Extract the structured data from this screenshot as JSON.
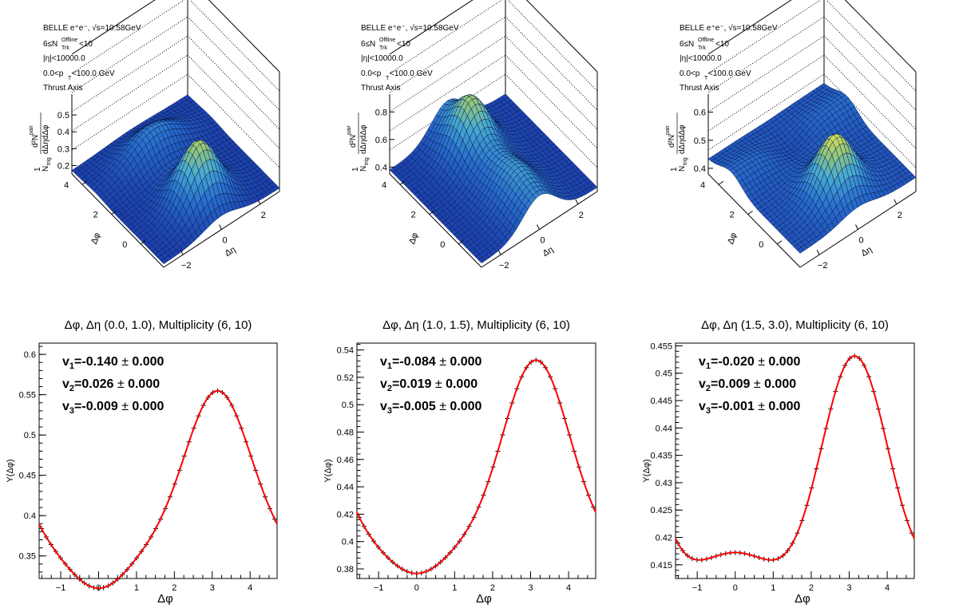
{
  "surface_panels": [
    {
      "info": [
        "BELLE e⁺e⁻, √s=10.58GeV",
        "6≤N",
        "|η|<10000.0",
        "0.0<p",
        "Thrust Axis"
      ],
      "nsub": "Trk",
      "nsup": "Offline",
      "nrest": "<10",
      "psub": "T",
      "prest": "<100.0 GeV",
      "zlabel_num": "d²N",
      "zlabel_num_sup": "pair",
      "zlabel_den": "dΔηdΔφ",
      "zlabel_pre": "1",
      "zlabel_pre_den": "N",
      "zlabel_pre_sub": "trig",
      "zticks": [
        "0.5",
        "0.4",
        "0.3",
        "0.2"
      ],
      "dphi_label": "Δφ",
      "deta_label": "Δη",
      "dphi_ticks": [
        "4",
        "2",
        "0"
      ],
      "deta_ticks": [
        "−2",
        "0",
        "2"
      ]
    },
    {
      "info": [
        "BELLE e⁺e⁻, √s=10.58GeV",
        "6≤N",
        "|η|<10000.0",
        "0.0<p",
        "Thrust Axis"
      ],
      "nsub": "Trk",
      "nsup": "Offline",
      "nrest": "<10",
      "psub": "T",
      "prest": "<100.0 GeV",
      "zlabel_num": "d²N",
      "zlabel_num_sup": "pair",
      "zlabel_den": "dΔηdΔφ",
      "zlabel_pre": "1",
      "zlabel_pre_den": "N",
      "zlabel_pre_sub": "trig",
      "zticks": [
        "0.8",
        "0.6",
        "0.4"
      ],
      "dphi_label": "Δφ",
      "deta_label": "Δη",
      "dphi_ticks": [
        "4",
        "2",
        "0"
      ],
      "deta_ticks": [
        "−2",
        "0",
        "2"
      ]
    },
    {
      "info": [
        "BELLE e⁺e⁻, √s=10.58GeV",
        "6≤N",
        "|η|<10000.0",
        "0.0<p",
        "Thrust Axis"
      ],
      "nsub": "Trk",
      "nsup": "Offline",
      "nrest": "<10",
      "psub": "T",
      "prest": "<100.0 GeV",
      "zlabel_num": "d²N",
      "zlabel_num_sup": "pair",
      "zlabel_den": "dΔηdΔφ",
      "zlabel_pre": "1",
      "zlabel_pre_den": "N",
      "zlabel_pre_sub": "trig",
      "zticks": [
        "0.6",
        "0.5",
        "0.4"
      ],
      "dphi_label": "Δφ",
      "deta_label": "Δη",
      "dphi_ticks": [
        "4",
        "2",
        "0"
      ],
      "deta_ticks": [
        "−2",
        "0",
        "2"
      ]
    }
  ],
  "colors": {
    "line": "#ff0000",
    "surface_low": "#1a4fb5",
    "surface_mid": "#4aa3d8",
    "surface_high": "#f4e84a"
  },
  "chart_data": [
    {
      "type": "line",
      "title": "Δφ, Δη (0.0, 1.0), Multiplicity (6, 10)",
      "xlabel": "Δφ",
      "ylabel": "Y(Δφ)",
      "xlim": [
        -1.5708,
        4.7124
      ],
      "ylim": [
        0.322,
        0.614
      ],
      "xticks": [
        "-1",
        "0",
        "1",
        "2",
        "3",
        "4"
      ],
      "yticks": [
        "0.35",
        "0.4",
        "0.45",
        "0.5",
        "0.55",
        "0.6"
      ],
      "a0": 0.411,
      "v1": -0.14,
      "v2": 0.026,
      "v3": -0.009,
      "annotations": [
        {
          "sub": "1",
          "val": "=-0.140",
          "err": "± 0.000"
        },
        {
          "sub": "2",
          "val": "=0.026",
          "err": "± 0.000"
        },
        {
          "sub": "3",
          "val": "=-0.009",
          "err": "± 0.000"
        }
      ],
      "grid": false
    },
    {
      "type": "line",
      "title": "Δφ, Δη (1.0, 1.5), Multiplicity (6, 10)",
      "xlabel": "Δφ",
      "ylabel": "Y(Δφ)",
      "xlim": [
        -1.5708,
        4.7124
      ],
      "ylim": [
        0.373,
        0.545
      ],
      "xticks": [
        "-1",
        "0",
        "1",
        "2",
        "3",
        "4"
      ],
      "yticks": [
        "0.38",
        "0.4",
        "0.42",
        "0.44",
        "0.46",
        "0.48",
        "0.5",
        "0.52",
        "0.54"
      ],
      "a0": 0.438,
      "v1": -0.084,
      "v2": 0.019,
      "v3": -0.005,
      "annotations": [
        {
          "sub": "1",
          "val": "=-0.084",
          "err": "± 0.000"
        },
        {
          "sub": "2",
          "val": "=0.019",
          "err": "± 0.000"
        },
        {
          "sub": "3",
          "val": "=-0.005",
          "err": "± 0.000"
        }
      ],
      "grid": false
    },
    {
      "type": "line",
      "title": "Δφ, Δη (1.5, 3.0), Multiplicity (6, 10)",
      "xlabel": "Δφ",
      "ylabel": "Y(Δφ)",
      "xlim": [
        -1.5708,
        4.7124
      ],
      "ylim": [
        0.4125,
        0.4555
      ],
      "xticks": [
        "-1",
        "0",
        "1",
        "2",
        "3",
        "4"
      ],
      "yticks": [
        "0.415",
        "0.42",
        "0.425",
        "0.43",
        "0.435",
        "0.44",
        "0.445",
        "0.45",
        "0.455"
      ],
      "a0": 0.4275,
      "v1": -0.02,
      "v2": 0.009,
      "v3": -0.001,
      "annotations": [
        {
          "sub": "1",
          "val": "=-0.020",
          "err": "± 0.000"
        },
        {
          "sub": "2",
          "val": "=0.009",
          "err": "± 0.000"
        },
        {
          "sub": "3",
          "val": "=-0.001",
          "err": "± 0.000"
        }
      ],
      "grid": false
    }
  ]
}
